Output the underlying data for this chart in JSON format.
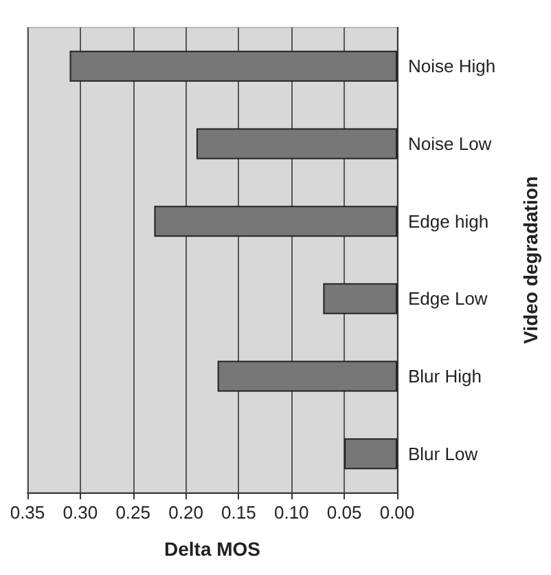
{
  "chart_data": {
    "type": "bar",
    "orientation": "horizontal",
    "xlabel": "Delta MOS",
    "ylabel": "Video degradation",
    "categories": [
      "Noise High",
      "Noise Low",
      "Edge high",
      "Edge Low",
      "Blur High",
      "Blur Low"
    ],
    "values": [
      0.31,
      0.19,
      0.23,
      0.07,
      0.17,
      0.05
    ],
    "color": "#777777",
    "xlim": [
      0.35,
      0
    ],
    "xticks": [
      0.35,
      {
        "value": 0.3,
        "label": "0.30"
      },
      0.25,
      {
        "value": 0.2,
        "label": "0.20"
      },
      0.15,
      {
        "value": 0.1,
        "label": "0.10"
      },
      0.05,
      {
        "value": 0,
        "label": "0.00"
      }
    ],
    "grid": "x"
  }
}
